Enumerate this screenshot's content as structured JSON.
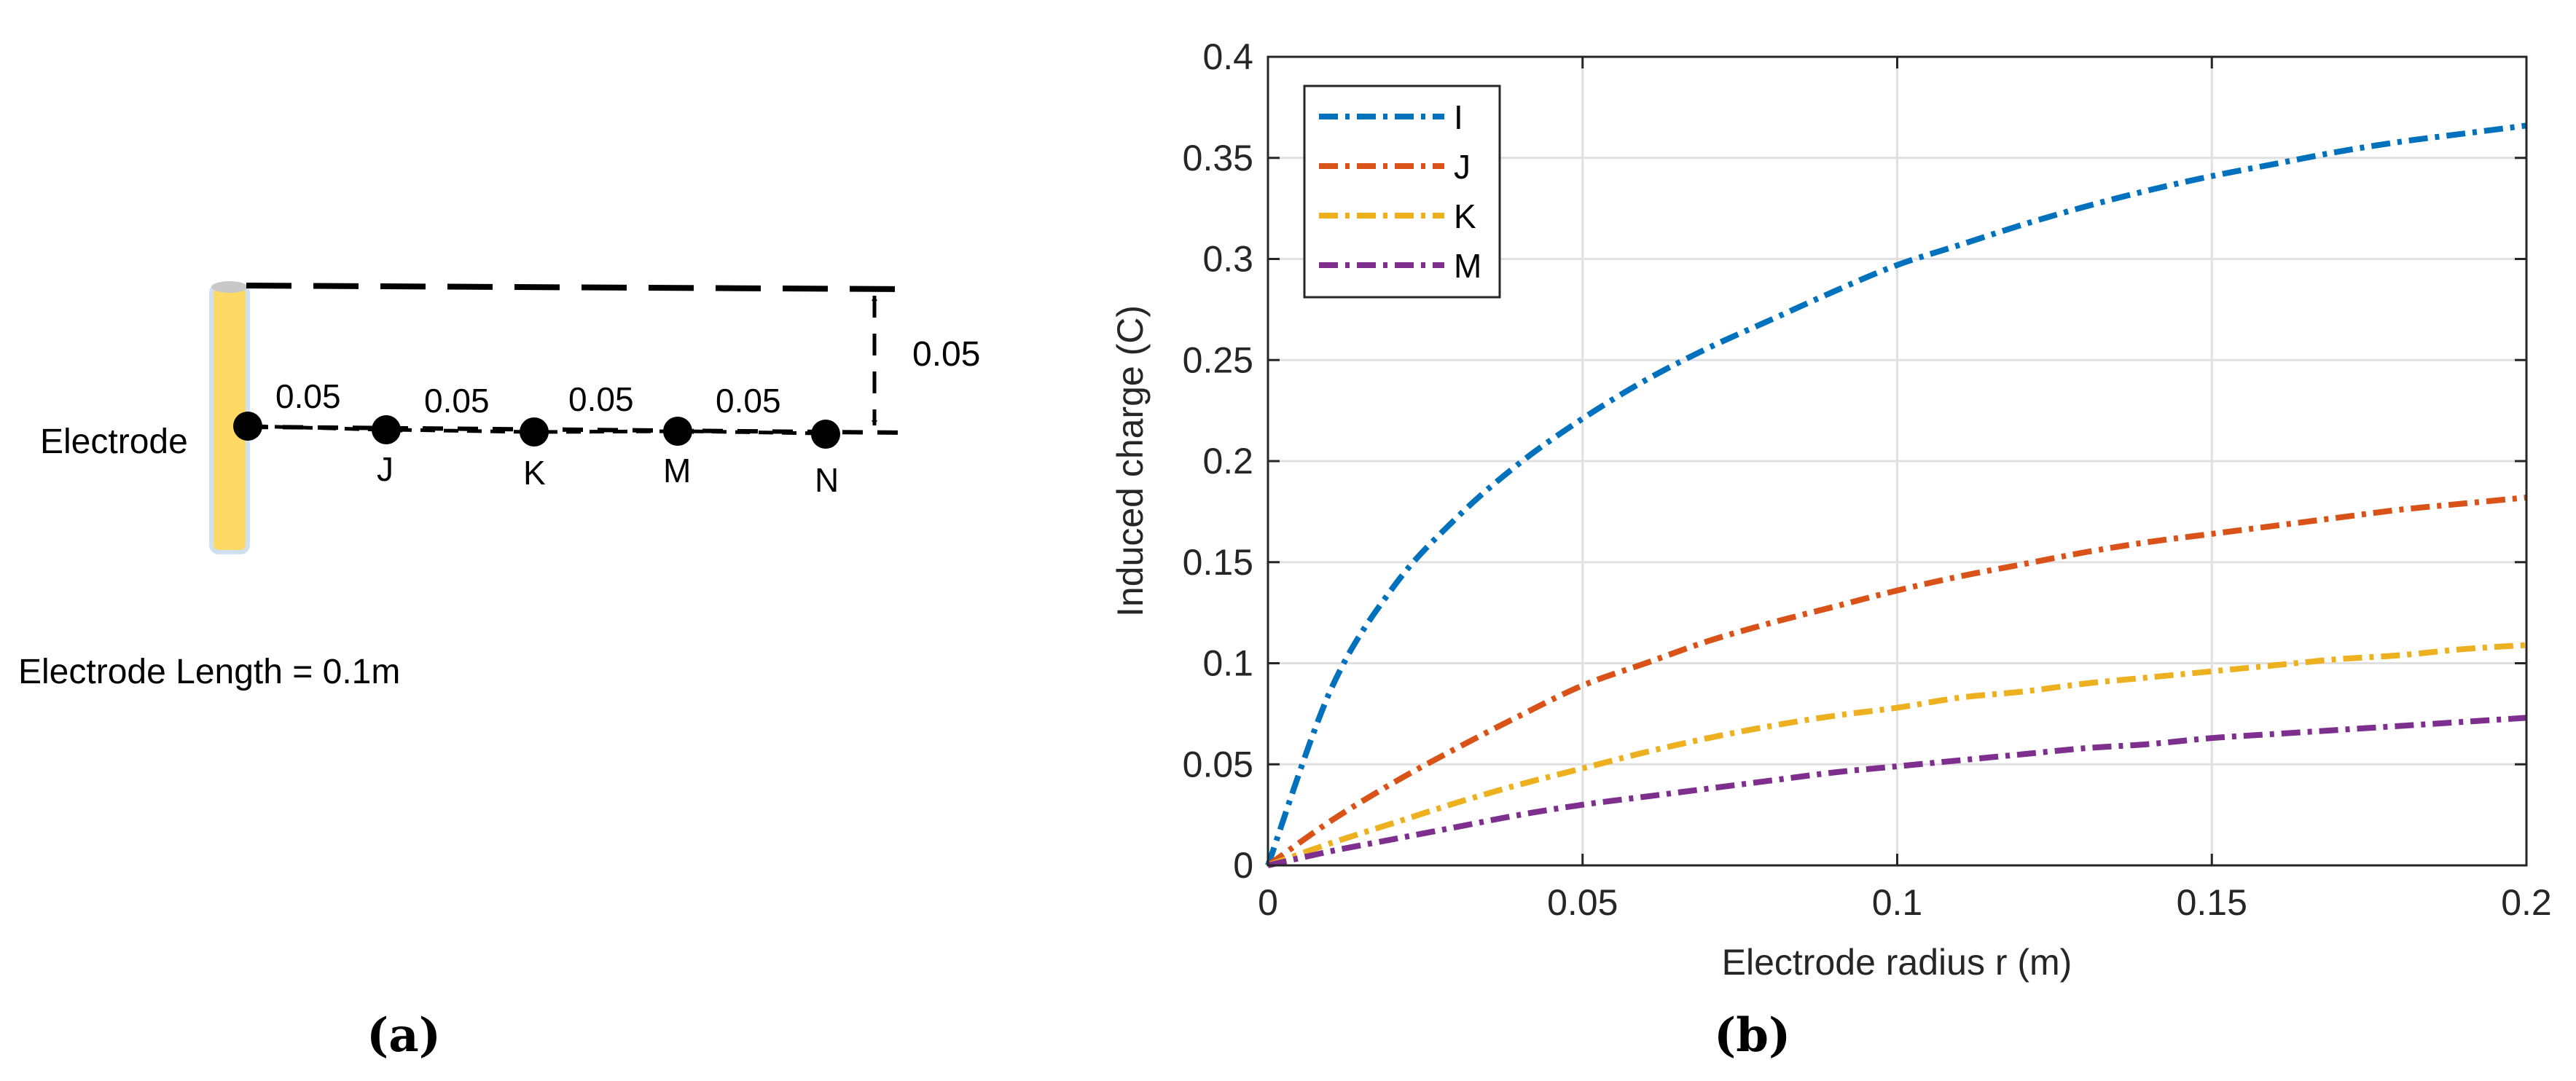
{
  "diagram": {
    "electrode_label": "Electrode",
    "length_note": "Electrode Length = 0.1m",
    "vertical_offset": "0.05",
    "spacings": [
      "0.05",
      "0.05",
      "0.05",
      "0.05"
    ],
    "points": [
      "J",
      "K",
      "M",
      "N"
    ]
  },
  "panel_labels": {
    "a": "(a)",
    "b": "(b)"
  },
  "colors": {
    "I": "#0072BD",
    "J": "#D95319",
    "K": "#EDB120",
    "M": "#7E2F8E",
    "electrode": "#FFD966"
  },
  "chart_data": {
    "type": "line",
    "title": "",
    "xlabel": "Electrode radius r (m)",
    "ylabel": "Induced charge (C)",
    "xlim": [
      0,
      0.2
    ],
    "ylim": [
      0,
      0.4
    ],
    "grid": true,
    "legend_position": "top-left",
    "xticks": [
      0,
      0.05,
      0.1,
      0.15,
      0.2
    ],
    "xtick_labels": [
      "0",
      "0.05",
      "0.1",
      "0.15",
      "0.2"
    ],
    "yticks": [
      0,
      0.05,
      0.1,
      0.15,
      0.2,
      0.25,
      0.3,
      0.35,
      0.4
    ],
    "ytick_labels": [
      "0",
      "0.05",
      "0.1",
      "0.15",
      "0.2",
      "0.25",
      "0.3",
      "0.35",
      "0.4"
    ],
    "x": [
      0,
      0.01,
      0.02,
      0.03,
      0.04,
      0.05,
      0.06,
      0.07,
      0.08,
      0.09,
      0.1,
      0.11,
      0.12,
      0.13,
      0.14,
      0.15,
      0.16,
      0.17,
      0.18,
      0.19,
      0.2
    ],
    "series": [
      {
        "name": "I",
        "color": "#0072BD",
        "values": [
          0,
          0.087,
          0.138,
          0.172,
          0.199,
          0.221,
          0.24,
          0.256,
          0.27,
          0.284,
          0.297,
          0.307,
          0.317,
          0.326,
          0.334,
          0.341,
          0.347,
          0.353,
          0.358,
          0.362,
          0.366
        ]
      },
      {
        "name": "J",
        "color": "#D95319",
        "values": [
          0,
          0.022,
          0.041,
          0.058,
          0.074,
          0.089,
          0.1,
          0.111,
          0.12,
          0.128,
          0.136,
          0.143,
          0.149,
          0.155,
          0.16,
          0.164,
          0.168,
          0.172,
          0.176,
          0.179,
          0.182
        ]
      },
      {
        "name": "K",
        "color": "#EDB120",
        "values": [
          0,
          0.011,
          0.021,
          0.031,
          0.04,
          0.048,
          0.056,
          0.063,
          0.069,
          0.074,
          0.078,
          0.083,
          0.086,
          0.09,
          0.093,
          0.096,
          0.099,
          0.102,
          0.104,
          0.107,
          0.109
        ]
      },
      {
        "name": "M",
        "color": "#7E2F8E",
        "values": [
          0,
          0.007,
          0.013,
          0.019,
          0.025,
          0.03,
          0.034,
          0.038,
          0.042,
          0.046,
          0.049,
          0.052,
          0.055,
          0.058,
          0.06,
          0.063,
          0.065,
          0.067,
          0.069,
          0.071,
          0.073
        ]
      }
    ]
  }
}
